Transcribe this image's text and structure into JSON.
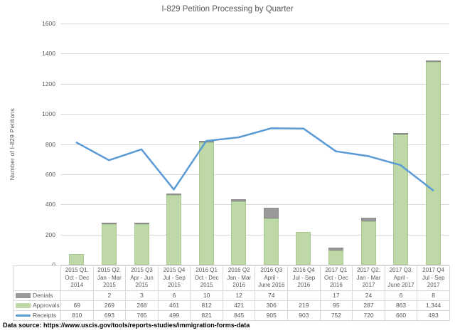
{
  "chart_data": {
    "type": "bar",
    "subtype": "stacked-bars-with-line-combo",
    "title": "I-829 Petition Processing by Quarter",
    "xlabel": "",
    "ylabel": "Number of I-829 Petitions",
    "ylim": [
      0,
      1600
    ],
    "ytick_step": 200,
    "grid": true,
    "legend_position": "table-left",
    "categories": [
      "2015 Q1.\nOct - Dec\n2014",
      "2015 Q2.\nJan - Mar\n2015",
      "2015 Q3\nApr - Jun\n2015",
      "2015 Q4\nJul - Sep\n2015",
      "2016 Q1\nOct - Dec\n2015",
      "2016 Q2\nJan - Mar\n2016",
      "2016 Q3\nApril -\nJune 2016",
      "2016 Q4\nJul - Sep\n2016",
      "2017 Q1\nOct - Dec\n2016",
      "2017 Q2.\nJan - Mar\n2017",
      "2017 Q3.\nApril -\nJune 2017",
      "2017 Q4\nJul - Sep\n2017"
    ],
    "series": [
      {
        "name": "Denials",
        "kind": "bar",
        "stack_order": 2,
        "color": "#999999",
        "border": "#8c8c8c",
        "values": [
          null,
          2,
          3,
          6,
          10,
          12,
          74,
          null,
          17,
          24,
          6,
          8
        ],
        "labels": [
          "",
          "2",
          "3",
          "6",
          "10",
          "12",
          "74",
          "",
          "17",
          "24",
          "6",
          "8"
        ]
      },
      {
        "name": "Approvals",
        "kind": "bar",
        "stack_order": 1,
        "color": "#bed8a8",
        "border": "#a9c88f",
        "values": [
          69,
          269,
          268,
          461,
          812,
          421,
          306,
          219,
          95,
          287,
          863,
          1344
        ],
        "labels": [
          "69",
          "269",
          "268",
          "461",
          "812",
          "421",
          "306",
          "219",
          "95",
          "287",
          "863",
          "1,344"
        ]
      },
      {
        "name": "Receipts",
        "kind": "line",
        "stack_order": 0,
        "color": "#5b9bd5",
        "values": [
          810,
          693,
          765,
          499,
          821,
          845,
          905,
          903,
          752,
          720,
          660,
          493
        ],
        "labels": [
          "810",
          "693",
          "765",
          "499",
          "821",
          "845",
          "905",
          "903",
          "752",
          "720",
          "660",
          "493"
        ]
      }
    ]
  },
  "footer": "Data source: https://www.uscis.gov/tools/reports-studies/immigration-forms-data",
  "colors": {
    "grid": "#d9d9d9",
    "text": "#595959",
    "approvals": "#bed8a8",
    "denials": "#999999",
    "receipts": "#5b9bd5"
  }
}
